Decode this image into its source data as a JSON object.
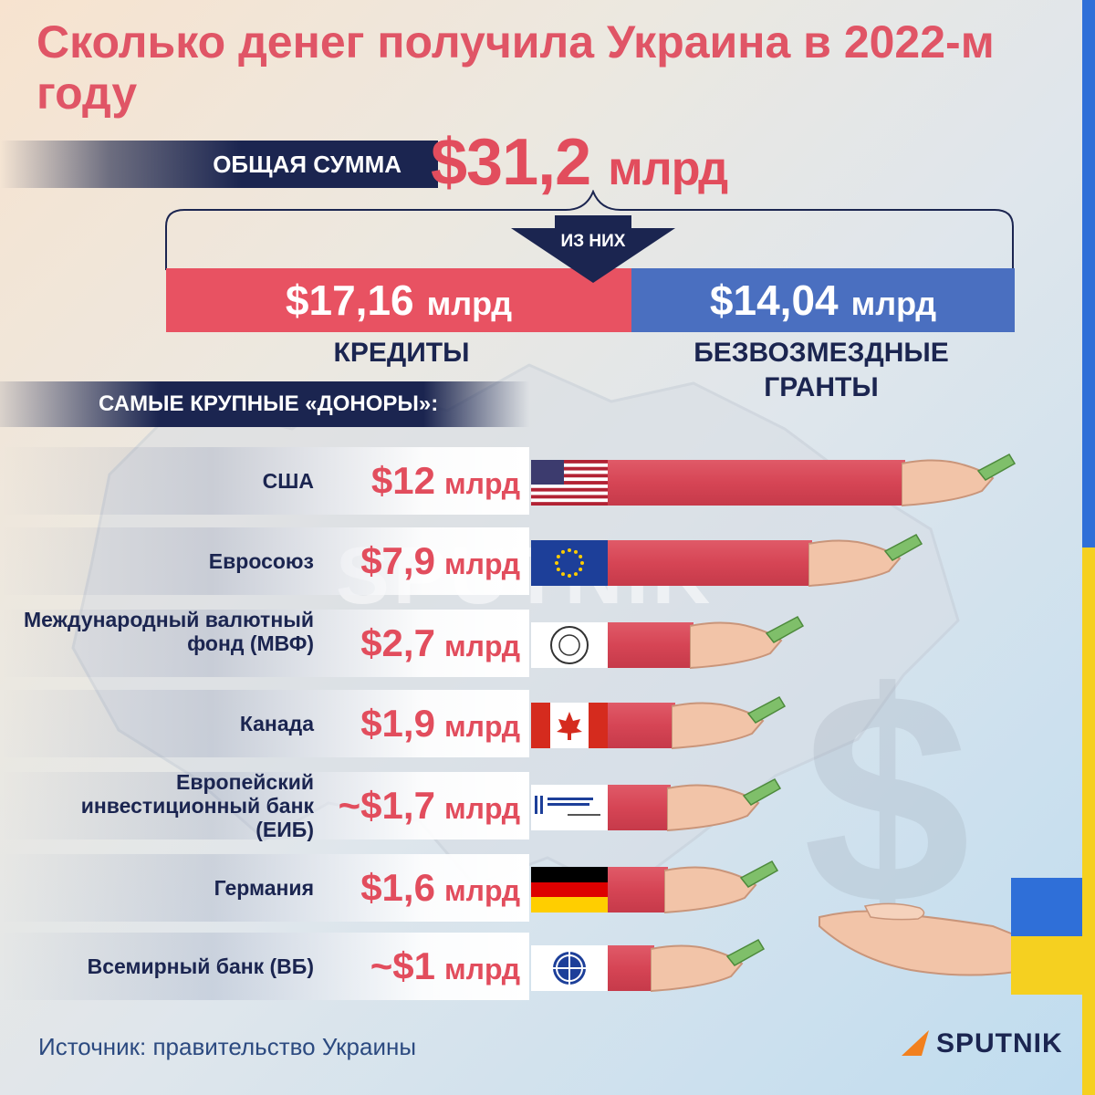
{
  "title": "Сколько денег получила Украина в 2022-м году",
  "total": {
    "label": "ОБЩАЯ СУММА",
    "value": "$31,2",
    "unit": "млрд"
  },
  "split_label": "ИЗ НИХ",
  "donors_heading": "САМЫЕ КРУПНЫЕ «ДОНОРЫ»:",
  "source": "Источник: правительство Украины",
  "brand": "SPUTNIK",
  "colors": {
    "accent_red": "#e24d5d",
    "bar_blue": "#4a6fc0",
    "navy": "#1b2550",
    "ukraine_blue": "#2f6fd8",
    "ukraine_yellow": "#f5d020"
  },
  "chart_data": [
    {
      "type": "bar",
      "categories": [
        "КРЕДИТЫ",
        "БЕЗВОЗМЕЗДНЫЕ\nГРАНТЫ"
      ],
      "values": [
        {
          "value": 17.16,
          "display": "$17,16",
          "unit": "млрд"
        },
        {
          "value": 14.04,
          "display": "$14,04",
          "unit": "млрд"
        }
      ],
      "title": "ОБЩАЯ СУММА $31,2 млрд"
    },
    {
      "type": "bar",
      "title": "САМЫЕ КРУПНЫЕ «ДОНОРЫ»:",
      "orientation": "horizontal",
      "xlim": [
        0,
        12
      ],
      "rows": [
        {
          "name": "США",
          "value": 12,
          "display": "$12",
          "unit": "млрд",
          "logo": "us-flag-icon"
        },
        {
          "name": "Евросоюз",
          "value": 7.9,
          "display": "$7,9",
          "unit": "млрд",
          "logo": "eu-flag-icon"
        },
        {
          "name": "Международный валютный фонд (МВФ)",
          "value": 2.7,
          "display": "$2,7",
          "unit": "млрд",
          "logo": "imf-seal-icon"
        },
        {
          "name": "Канада",
          "value": 1.9,
          "display": "$1,9",
          "unit": "млрд",
          "logo": "canada-flag-icon"
        },
        {
          "name": "Европейский инвестиционный банк (ЕИБ)",
          "value": 1.7,
          "display": "~$1,7",
          "unit": "млрд",
          "logo": "eib-logo-icon"
        },
        {
          "name": "Германия",
          "value": 1.6,
          "display": "$1,6",
          "unit": "млрд",
          "logo": "germany-flag-icon"
        },
        {
          "name": "Всемирный банк (ВБ)",
          "value": 1,
          "display": "~$1",
          "unit": "млрд",
          "logo": "world-bank-icon"
        }
      ]
    }
  ]
}
